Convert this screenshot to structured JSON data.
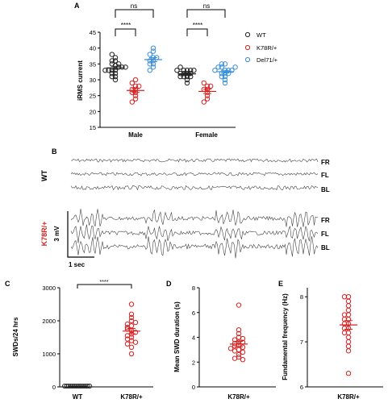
{
  "panels": {
    "a": "A",
    "b": "B",
    "c": "C",
    "d": "D",
    "e": "E"
  },
  "colors": {
    "wt": "#222222",
    "k78r": "#d62020",
    "del71": "#3a8fd8",
    "trace": "#444444"
  },
  "panelA": {
    "ylabel": "iRMS current",
    "yticks": [
      "15",
      "20",
      "25",
      "30",
      "35",
      "40",
      "45"
    ],
    "groups": [
      "Male",
      "Female"
    ],
    "sig": [
      "****",
      "****"
    ],
    "ns": [
      "ns",
      "ns"
    ],
    "legend": [
      {
        "label": "WT",
        "key": "wt"
      },
      {
        "label": "K78R/+",
        "key": "k78r"
      },
      {
        "label": "Del71/+",
        "key": "del71"
      }
    ]
  },
  "panelB": {
    "wt_label": "WT",
    "k78r_label": "K78R/+",
    "channels": [
      "FR",
      "FL",
      "BL"
    ],
    "scale_v": "3 mV",
    "scale_t": "1 sec"
  },
  "panelC": {
    "ylabel": "SWDs/24 hrs",
    "yticks": [
      "0",
      "1000",
      "2000",
      "3000"
    ],
    "categories": [
      "WT",
      "K78R/+"
    ],
    "sig": "****"
  },
  "panelD": {
    "ylabel": "Mean SWD duration (s)",
    "yticks": [
      "0",
      "2",
      "4",
      "6",
      "8"
    ],
    "category": "K78R/+"
  },
  "panelE": {
    "ylabel": "Fundamental frequency (Hz)",
    "yticks": [
      "6",
      "7",
      "8"
    ],
    "category": "K78R/+"
  },
  "chart_data": [
    {
      "type": "scatter",
      "panel": "A",
      "ylabel": "iRMS current",
      "ylim": [
        15,
        45
      ],
      "categories": [
        "Male",
        "Female"
      ],
      "series": [
        {
          "name": "WT",
          "values": [
            [
              34.5,
              33,
              33,
              34,
              35,
              36,
              33,
              32,
              31,
              34,
              36,
              37,
              38,
              35,
              33,
              32,
              34,
              31,
              30
            ],
            [
              33,
              32,
              31,
              33,
              32,
              31,
              33,
              32,
              30,
              31,
              32,
              34,
              33,
              29,
              31,
              33
            ]
          ]
        },
        {
          "name": "K78R/+",
          "values": [
            [
              27,
              28,
              26,
              27,
              25,
              24,
              26,
              29,
              28,
              23,
              30
            ],
            [
              27,
              28,
              26,
              27,
              25,
              24,
              23,
              29,
              28
            ]
          ]
        },
        {
          "name": "Del71/+",
          "values": [
            [
              36,
              35,
              37,
              38,
              34,
              40,
              39,
              36,
              33,
              35,
              37
            ],
            [
              33,
              32,
              34,
              33,
              35,
              32,
              31,
              34,
              33,
              30,
              29,
              32,
              35,
              31,
              33,
              34
            ]
          ]
        }
      ]
    },
    {
      "type": "scatter",
      "panel": "C",
      "ylabel": "SWDs/24 hrs",
      "ylim": [
        0,
        3000
      ],
      "categories": [
        "WT",
        "K78R/+"
      ],
      "series": [
        {
          "name": "WT",
          "values": [
            0,
            0,
            0,
            0,
            0,
            0,
            0,
            0,
            0,
            0,
            0,
            0,
            0,
            0
          ]
        },
        {
          "name": "K78R/+",
          "values": [
            2500,
            2200,
            2000,
            1900,
            1850,
            1800,
            1700,
            1600,
            1500,
            1400,
            1300,
            1200,
            1750,
            1650,
            1550,
            2100,
            1950,
            1450,
            1350,
            1000
          ]
        }
      ]
    },
    {
      "type": "scatter",
      "panel": "D",
      "ylabel": "Mean SWD duration (s)",
      "ylim": [
        0,
        8
      ],
      "categories": [
        "K78R/+"
      ],
      "series": [
        {
          "name": "K78R/+",
          "values": [
            6.6,
            4.6,
            4.3,
            4.0,
            3.8,
            3.6,
            3.5,
            3.4,
            3.3,
            3.2,
            3.1,
            3.0,
            2.9,
            2.8,
            2.6,
            2.4,
            2.3,
            2.2,
            3.6,
            3.9
          ]
        }
      ]
    },
    {
      "type": "scatter",
      "panel": "E",
      "ylabel": "Fundamental frequency (Hz)",
      "ylim": [
        6,
        8.2
      ],
      "categories": [
        "K78R/+"
      ],
      "series": [
        {
          "name": "K78R/+",
          "values": [
            8.0,
            8.0,
            7.9,
            7.8,
            7.7,
            7.6,
            7.5,
            7.5,
            7.4,
            7.3,
            7.3,
            7.2,
            7.2,
            7.1,
            7.0,
            6.9,
            6.8,
            6.3,
            7.4,
            7.6
          ]
        }
      ]
    }
  ]
}
